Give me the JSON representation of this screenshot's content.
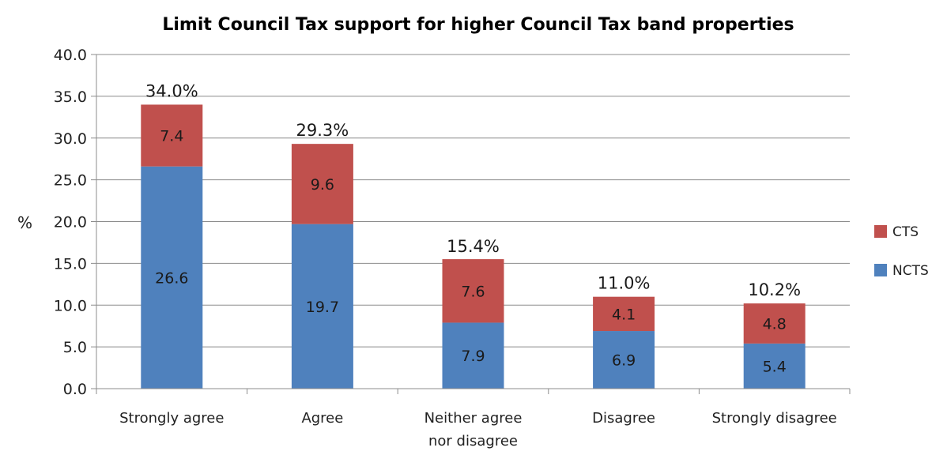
{
  "chart_data": {
    "type": "bar",
    "stacked": true,
    "title": "Limit Council Tax support for higher Council Tax band properties",
    "ylabel": "%",
    "xlabel": "",
    "ylim": [
      0,
      40
    ],
    "yticks": [
      "0.0",
      "5.0",
      "10.0",
      "15.0",
      "20.0",
      "25.0",
      "30.0",
      "35.0",
      "40.0"
    ],
    "grid": true,
    "legend_position": "right",
    "categories": [
      [
        "Strongly agree"
      ],
      [
        "Agree"
      ],
      [
        "Neither agree",
        "nor disagree"
      ],
      [
        "Disagree"
      ],
      [
        "Strongly disagree"
      ]
    ],
    "series": [
      {
        "name": "NCTS",
        "color": "#4f81bd",
        "values": [
          26.6,
          19.7,
          7.9,
          6.9,
          5.4
        ],
        "labels": [
          "26.6",
          "19.7",
          "7.9",
          "6.9",
          "5.4"
        ]
      },
      {
        "name": "CTS",
        "color": "#c0504d",
        "values": [
          7.4,
          9.6,
          7.6,
          4.1,
          4.8
        ],
        "labels": [
          "7.4",
          "9.6",
          "7.6",
          "4.1",
          "4.8"
        ]
      }
    ],
    "totals": [
      34.0,
      29.3,
      15.4,
      11.0,
      10.2
    ],
    "total_labels": [
      "34.0%",
      "29.3%",
      "15.4%",
      "11.0%",
      "10.2%"
    ]
  }
}
